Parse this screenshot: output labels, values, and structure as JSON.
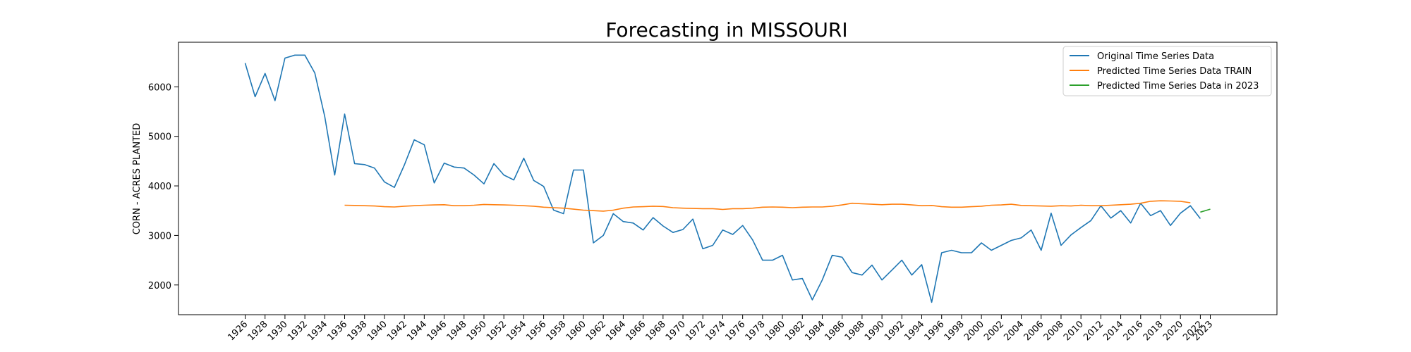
{
  "chart_data": {
    "type": "line",
    "title": "Forecasting in MISSOURI",
    "xlabel": "",
    "ylabel": "CORN - ACRES PLANTED",
    "xlim": [
      1919.3,
      2029.7
    ],
    "ylim": [
      1400,
      6900
    ],
    "yticks": [
      2000,
      3000,
      4000,
      5000,
      6000
    ],
    "xticks": [
      1926,
      1928,
      1930,
      1932,
      1934,
      1936,
      1938,
      1940,
      1942,
      1944,
      1946,
      1948,
      1950,
      1952,
      1954,
      1956,
      1958,
      1960,
      1962,
      1964,
      1966,
      1968,
      1970,
      1972,
      1974,
      1976,
      1978,
      1980,
      1982,
      1984,
      1986,
      1988,
      1990,
      1992,
      1994,
      1996,
      1998,
      2000,
      2002,
      2004,
      2006,
      2008,
      2010,
      2012,
      2014,
      2016,
      2018,
      2020,
      2022,
      2023
    ],
    "legend_position": "top-right",
    "grid": false,
    "series": [
      {
        "name": "Original Time Series Data",
        "color": "#1f77b4",
        "x": [
          1926,
          1927,
          1928,
          1929,
          1930,
          1931,
          1932,
          1933,
          1934,
          1935,
          1936,
          1937,
          1938,
          1939,
          1940,
          1941,
          1942,
          1943,
          1944,
          1945,
          1946,
          1947,
          1948,
          1949,
          1950,
          1951,
          1952,
          1953,
          1954,
          1955,
          1956,
          1957,
          1958,
          1959,
          1960,
          1961,
          1962,
          1963,
          1964,
          1965,
          1966,
          1967,
          1968,
          1969,
          1970,
          1971,
          1972,
          1973,
          1974,
          1975,
          1976,
          1977,
          1978,
          1979,
          1980,
          1981,
          1982,
          1983,
          1984,
          1985,
          1986,
          1987,
          1988,
          1989,
          1990,
          1991,
          1992,
          1993,
          1994,
          1995,
          1996,
          1997,
          1998,
          1999,
          2000,
          2001,
          2002,
          2003,
          2004,
          2005,
          2006,
          2007,
          2008,
          2009,
          2010,
          2011,
          2012,
          2013,
          2014,
          2015,
          2016,
          2017,
          2018,
          2019,
          2020,
          2021,
          2022
        ],
        "values": [
          6480,
          5800,
          6270,
          5720,
          6580,
          6640,
          6640,
          6280,
          5400,
          4220,
          5450,
          4450,
          4430,
          4360,
          4080,
          3970,
          4420,
          4930,
          4830,
          4060,
          4460,
          4380,
          4360,
          4220,
          4040,
          4450,
          4220,
          4120,
          4560,
          4110,
          3990,
          3510,
          3440,
          4320,
          4320,
          2850,
          3000,
          3440,
          3280,
          3250,
          3110,
          3360,
          3190,
          3060,
          3120,
          3330,
          2730,
          2800,
          3110,
          3020,
          3200,
          2910,
          2500,
          2500,
          2600,
          2100,
          2130,
          1700,
          2100,
          2600,
          2560,
          2250,
          2200,
          2400,
          2100,
          2300,
          2500,
          2200,
          2410,
          1650,
          2650,
          2700,
          2650,
          2650,
          2850,
          2700,
          2800,
          2900,
          2950,
          3110,
          2700,
          3450,
          2800,
          3010,
          3160,
          3300,
          3600,
          3350,
          3500,
          3250,
          3650,
          3400,
          3500,
          3200,
          3450,
          3600,
          3340
        ]
      },
      {
        "name": "Predicted Time Series Data TRAIN",
        "color": "#ff7f0e",
        "x": [
          1936,
          1937,
          1938,
          1939,
          1940,
          1941,
          1942,
          1943,
          1944,
          1945,
          1946,
          1947,
          1948,
          1949,
          1950,
          1951,
          1952,
          1953,
          1954,
          1955,
          1956,
          1957,
          1958,
          1959,
          1960,
          1961,
          1962,
          1963,
          1964,
          1965,
          1966,
          1967,
          1968,
          1969,
          1970,
          1971,
          1972,
          1973,
          1974,
          1975,
          1976,
          1977,
          1978,
          1979,
          1980,
          1981,
          1982,
          1983,
          1984,
          1985,
          1986,
          1987,
          1988,
          1989,
          1990,
          1991,
          1992,
          1993,
          1994,
          1995,
          1996,
          1997,
          1998,
          1999,
          2000,
          2001,
          2002,
          2003,
          2004,
          2005,
          2006,
          2007,
          2008,
          2009,
          2010,
          2011,
          2012,
          2013,
          2014,
          2015,
          2016,
          2017,
          2018,
          2019,
          2020,
          2021
        ],
        "values": [
          3610,
          3605,
          3600,
          3595,
          3580,
          3575,
          3590,
          3600,
          3610,
          3615,
          3620,
          3600,
          3600,
          3610,
          3625,
          3620,
          3615,
          3610,
          3600,
          3590,
          3570,
          3560,
          3550,
          3530,
          3510,
          3500,
          3490,
          3510,
          3550,
          3575,
          3580,
          3590,
          3585,
          3560,
          3550,
          3545,
          3540,
          3540,
          3525,
          3540,
          3540,
          3550,
          3570,
          3575,
          3570,
          3560,
          3570,
          3575,
          3575,
          3590,
          3615,
          3650,
          3640,
          3630,
          3620,
          3630,
          3630,
          3615,
          3600,
          3605,
          3580,
          3570,
          3570,
          3580,
          3590,
          3610,
          3615,
          3630,
          3605,
          3600,
          3595,
          3590,
          3600,
          3595,
          3610,
          3600,
          3600,
          3610,
          3620,
          3630,
          3650,
          3690,
          3700,
          3695,
          3690,
          3660
        ]
      },
      {
        "name": "Predicted Time Series Data in 2023",
        "color": "#2ca02c",
        "x": [
          2022,
          2023
        ],
        "values": [
          3470,
          3530
        ]
      }
    ]
  }
}
